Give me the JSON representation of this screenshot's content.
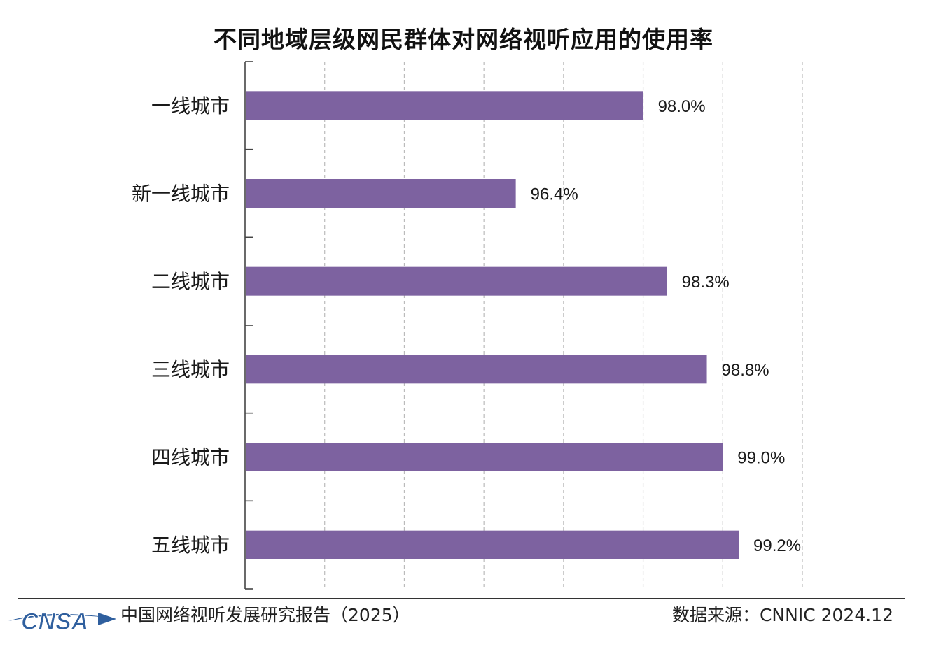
{
  "chart_data": {
    "type": "bar",
    "orientation": "horizontal",
    "title": "不同地域层级网民群体对网络视听应用的使用率",
    "categories": [
      "一线城市",
      "新一线城市",
      "二线城市",
      "三线城市",
      "四线城市",
      "五线城市"
    ],
    "values": [
      98.0,
      96.4,
      98.3,
      98.8,
      99.0,
      99.2
    ],
    "data_labels": [
      "98.0%",
      "96.4%",
      "98.3%",
      "98.8%",
      "99.0%",
      "99.2%"
    ],
    "xlim": [
      93.0,
      100.0
    ],
    "x_grid_step": 1.0,
    "grid": "vertical-dashed",
    "bar_color": "#7d62a0",
    "value_axis_labels_visible": false
  },
  "footer": {
    "logo_text": "CNSA",
    "report": "中国网络视听发展研究报告（2025）",
    "source": "数据来源：CNNIC  2024.12"
  },
  "colors": {
    "bar": "#7d62a0",
    "logo": "#2f5f9e",
    "axis": "#444444",
    "grid": "#bbbbbb"
  }
}
